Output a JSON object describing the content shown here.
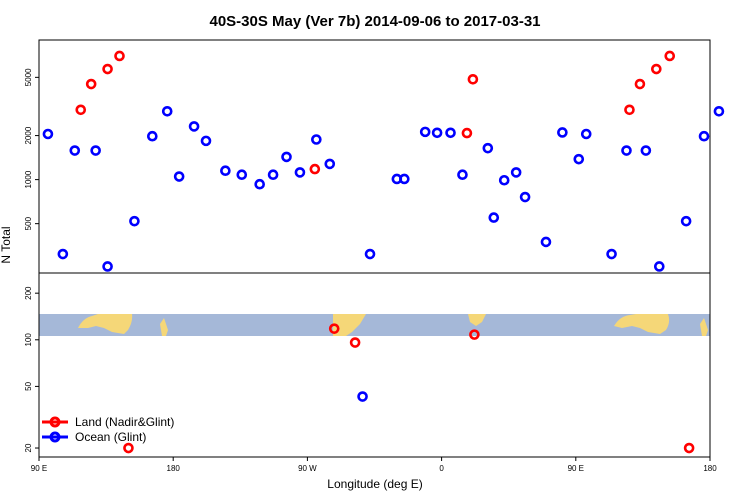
{
  "chart_data": {
    "type": "scatter",
    "title": "40S-30S May (Ver 7b)   2014-09-06 to 2017-03-31",
    "xlabel": "Longitude (deg E)",
    "ylabel": "N Total",
    "x_ticks": [
      {
        "value": 90,
        "label": "90 E"
      },
      {
        "value": 180,
        "label": "180"
      },
      {
        "value": 270,
        "label": "90 W"
      },
      {
        "value": 360,
        "label": "0"
      },
      {
        "value": 450,
        "label": "90 E"
      },
      {
        "value": 540,
        "label": "180"
      }
    ],
    "xlim": [
      90,
      540
    ],
    "top_panel": {
      "scale": "log",
      "ylim": [
        230,
        9000
      ],
      "y_ticks": [
        500,
        1000,
        2000,
        5000
      ],
      "series": [
        {
          "name": "Land (Nadir&Glint)",
          "color": "#ff0000",
          "points": [
            [
              118,
              3000
            ],
            [
              125,
              4500
            ],
            [
              136,
              5700
            ],
            [
              144,
              7000
            ],
            [
              275,
              1180
            ],
            [
              377,
              2080
            ],
            [
              381,
              4850
            ],
            [
              486,
              3000
            ],
            [
              493,
              4500
            ],
            [
              504,
              5700
            ],
            [
              513,
              7000
            ]
          ]
        },
        {
          "name": "Ocean (Glint)",
          "color": "#0000ff",
          "points": [
            [
              96,
              2050
            ],
            [
              106,
              310
            ],
            [
              114,
              1580
            ],
            [
              128,
              1580
            ],
            [
              136,
              255
            ],
            [
              154,
              520
            ],
            [
              166,
              1980
            ],
            [
              176,
              2930
            ],
            [
              184,
              1050
            ],
            [
              194,
              2310
            ],
            [
              202,
              1840
            ],
            [
              215,
              1150
            ],
            [
              226,
              1080
            ],
            [
              238,
              930
            ],
            [
              247,
              1080
            ],
            [
              256,
              1430
            ],
            [
              265,
              1120
            ],
            [
              276,
              1880
            ],
            [
              285,
              1280
            ],
            [
              312,
              310
            ],
            [
              330,
              1010
            ],
            [
              335,
              1010
            ],
            [
              349,
              2120
            ],
            [
              357,
              2090
            ],
            [
              366,
              2090
            ],
            [
              374,
              1080
            ],
            [
              391,
              1640
            ],
            [
              395,
              550
            ],
            [
              402,
              990
            ],
            [
              410,
              1120
            ],
            [
              416,
              760
            ],
            [
              430,
              375
            ],
            [
              441,
              2100
            ],
            [
              452,
              1380
            ],
            [
              457,
              2050
            ],
            [
              474,
              310
            ],
            [
              484,
              1580
            ],
            [
              497,
              1580
            ],
            [
              506,
              255
            ],
            [
              524,
              520
            ],
            [
              536,
              1980
            ],
            [
              546,
              2930
            ]
          ]
        }
      ]
    },
    "bottom_panel": {
      "scale": "log",
      "ylim": [
        17.5,
        270
      ],
      "y_ticks": [
        20,
        50,
        100,
        200
      ],
      "series": [
        {
          "name": "Land (Nadir&Glint)",
          "color": "#ff0000",
          "points": [
            [
              150,
              20
            ],
            [
              288,
              118
            ],
            [
              302,
              96
            ],
            [
              382,
              108
            ],
            [
              526,
              20
            ]
          ]
        },
        {
          "name": "Ocean (Glint)",
          "color": "#0000ff",
          "points": [
            [
              307,
              43
            ]
          ]
        }
      ]
    },
    "legend": {
      "position": "bottom-left",
      "entries": [
        {
          "label": "Land (Nadir&Glint)",
          "color": "#ff0000"
        },
        {
          "label": "Ocean (Glint)",
          "color": "#0000ff"
        }
      ]
    },
    "map_strip_colors": {
      "ocean": "#a5b8d8",
      "land": "#f5d778"
    }
  }
}
